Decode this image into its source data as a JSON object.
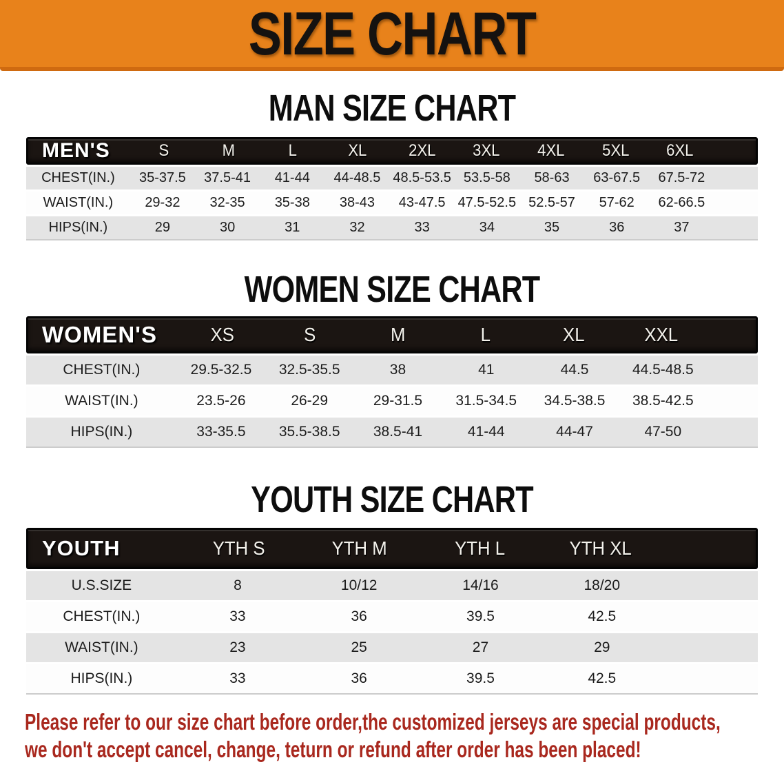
{
  "banner": {
    "title": "SIZE CHART",
    "bg_color": "#E8821B"
  },
  "colors": {
    "bar_bg": "#1B1512",
    "row_stripe": "#E4E4E4",
    "row_plain": "#FDFDFD",
    "footer_text": "#A9281E"
  },
  "sections": [
    {
      "heading": "MAN SIZE CHART",
      "header_label": "MEN'S",
      "columns": [
        "S",
        "M",
        "L",
        "XL",
        "2XL",
        "3XL",
        "4XL",
        "5XL",
        "6XL"
      ],
      "rows": [
        {
          "label": "CHEST(IN.)",
          "values": [
            "35-37.5",
            "37.5-41",
            "41-44",
            "44-48.5",
            "48.5-53.5",
            "53.5-58",
            "58-63",
            "63-67.5",
            "67.5-72"
          ]
        },
        {
          "label": "WAIST(IN.)",
          "values": [
            "29-32",
            "32-35",
            "35-38",
            "38-43",
            "43-47.5",
            "47.5-52.5",
            "52.5-57",
            "57-62",
            "62-66.5"
          ]
        },
        {
          "label": "HIPS(IN.)",
          "values": [
            "29",
            "30",
            "31",
            "32",
            "33",
            "34",
            "35",
            "36",
            "37"
          ]
        }
      ]
    },
    {
      "heading": "WOMEN SIZE CHART",
      "header_label": "WOMEN'S",
      "columns": [
        "XS",
        "S",
        "M",
        "L",
        "XL",
        "XXL"
      ],
      "rows": [
        {
          "label": "CHEST(IN.)",
          "values": [
            "29.5-32.5",
            "32.5-35.5",
            "38",
            "41",
            "44.5",
            "44.5-48.5"
          ]
        },
        {
          "label": "WAIST(IN.)",
          "values": [
            "23.5-26",
            "26-29",
            "29-31.5",
            "31.5-34.5",
            "34.5-38.5",
            "38.5-42.5"
          ]
        },
        {
          "label": "HIPS(IN.)",
          "values": [
            "33-35.5",
            "35.5-38.5",
            "38.5-41",
            "41-44",
            "44-47",
            "47-50"
          ]
        }
      ]
    },
    {
      "heading": "YOUTH SIZE CHART",
      "header_label": "YOUTH",
      "columns": [
        "YTH S",
        "YTH M",
        "YTH L",
        "YTH XL"
      ],
      "rows": [
        {
          "label": "U.S.SIZE",
          "values": [
            "8",
            "10/12",
            "14/16",
            "18/20"
          ]
        },
        {
          "label": "CHEST(IN.)",
          "values": [
            "33",
            "36",
            "39.5",
            "42.5"
          ]
        },
        {
          "label": "WAIST(IN.)",
          "values": [
            "23",
            "25",
            "27",
            "29"
          ]
        },
        {
          "label": "HIPS(IN.)",
          "values": [
            "33",
            "36",
            "39.5",
            "42.5"
          ]
        }
      ]
    }
  ],
  "footer": {
    "line1": "Please refer to our size chart before order,the customized jerseys are special products,",
    "line2": "we don't accept cancel, change, teturn or refund after order has been placed!"
  }
}
